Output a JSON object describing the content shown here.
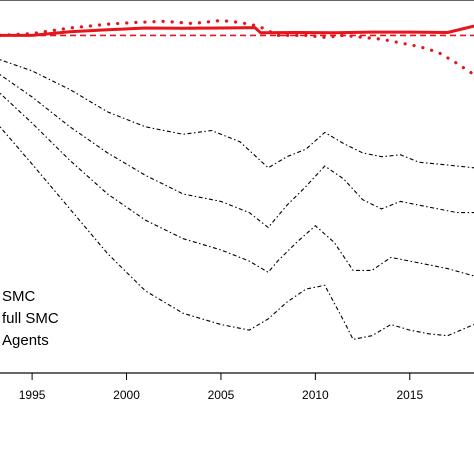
{
  "chart_data": {
    "type": "line",
    "xticks": [
      1995,
      2000,
      2005,
      2010,
      2015
    ],
    "xlim": [
      1993.3,
      2018.4
    ],
    "ylim": [
      0,
      1
    ],
    "grid": false,
    "legend": {
      "placement": "left",
      "entries": [
        "SMC",
        "full SMC",
        "Agents"
      ]
    },
    "colors": {
      "red": "#e8141c",
      "black": "#000000"
    },
    "series": [
      {
        "style": "solid-red",
        "x": [
          1993.3,
          1995,
          1997,
          1999,
          2001,
          2003,
          2005,
          2006.8,
          2007.1,
          2009,
          2011,
          2013,
          2015,
          2017,
          2018.4
        ],
        "y": [
          0.905,
          0.905,
          0.915,
          0.92,
          0.925,
          0.924,
          0.925,
          0.926,
          0.912,
          0.913,
          0.912,
          0.914,
          0.914,
          0.913,
          0.93
        ]
      },
      {
        "style": "dashed-red",
        "x": [
          1993.3,
          1996,
          2000,
          2005,
          2010,
          2015,
          2018.4
        ],
        "y": [
          0.905,
          0.905,
          0.905,
          0.905,
          0.905,
          0.905,
          0.905
        ]
      },
      {
        "style": "dotted-red",
        "x": [
          1993.3,
          1995,
          1997,
          1999,
          2000.5,
          2002,
          2003.5,
          2005,
          2006,
          2007,
          2008,
          2009.5,
          2010.5,
          2011.5,
          2012.5,
          2013.5,
          2014.5,
          2015.5,
          2016.5,
          2017.5,
          2018.4
        ],
        "y": [
          0.905,
          0.91,
          0.925,
          0.935,
          0.94,
          0.943,
          0.937,
          0.945,
          0.94,
          0.93,
          0.905,
          0.905,
          0.9,
          0.905,
          0.9,
          0.895,
          0.885,
          0.875,
          0.86,
          0.83,
          0.8
        ]
      },
      {
        "style": "dotdash-black",
        "x": [
          1993.3,
          1995,
          1997,
          1999,
          2001,
          2003,
          2004.5,
          2006,
          2007.5,
          2008.5,
          2009.5,
          2010.5,
          2011.5,
          2012.5,
          2013.5,
          2014.5,
          2015.5,
          2016.5,
          2017.5,
          2018.4
        ],
        "y": [
          0.84,
          0.81,
          0.76,
          0.7,
          0.66,
          0.64,
          0.65,
          0.62,
          0.55,
          0.58,
          0.6,
          0.645,
          0.615,
          0.59,
          0.58,
          0.585,
          0.565,
          0.56,
          0.555,
          0.55
        ]
      },
      {
        "style": "dotdash-black",
        "x": [
          1993.3,
          1995,
          1997,
          1999,
          2001,
          2003,
          2005,
          2006.5,
          2007.5,
          2008.5,
          2009.5,
          2010.5,
          2011.5,
          2012.5,
          2013.5,
          2014.5,
          2015.5,
          2016.5,
          2017.5,
          2018.4
        ],
        "y": [
          0.8,
          0.74,
          0.66,
          0.59,
          0.53,
          0.48,
          0.46,
          0.43,
          0.39,
          0.45,
          0.5,
          0.555,
          0.52,
          0.465,
          0.44,
          0.46,
          0.45,
          0.44,
          0.43,
          0.43
        ]
      },
      {
        "style": "dotdash-black",
        "x": [
          1993.3,
          1995,
          1997,
          1999,
          2001,
          2003,
          2005,
          2006.5,
          2007.5,
          2008,
          2009,
          2010,
          2011,
          2012,
          2013,
          2014,
          2015,
          2016,
          2017,
          2018.4
        ],
        "y": [
          0.75,
          0.67,
          0.57,
          0.48,
          0.41,
          0.36,
          0.33,
          0.3,
          0.27,
          0.3,
          0.35,
          0.395,
          0.35,
          0.275,
          0.275,
          0.31,
          0.3,
          0.29,
          0.28,
          0.26
        ]
      },
      {
        "style": "dotdash-black",
        "x": [
          1993.3,
          1995,
          1997,
          1999,
          2001,
          2003,
          2005,
          2006.5,
          2007.5,
          2008.5,
          2009.5,
          2010.5,
          2011.5,
          2012,
          2013,
          2014,
          2015,
          2016,
          2017,
          2018.4
        ],
        "y": [
          0.66,
          0.56,
          0.44,
          0.32,
          0.22,
          0.16,
          0.13,
          0.115,
          0.145,
          0.19,
          0.225,
          0.235,
          0.14,
          0.09,
          0.1,
          0.13,
          0.115,
          0.105,
          0.1,
          0.13
        ]
      }
    ]
  }
}
